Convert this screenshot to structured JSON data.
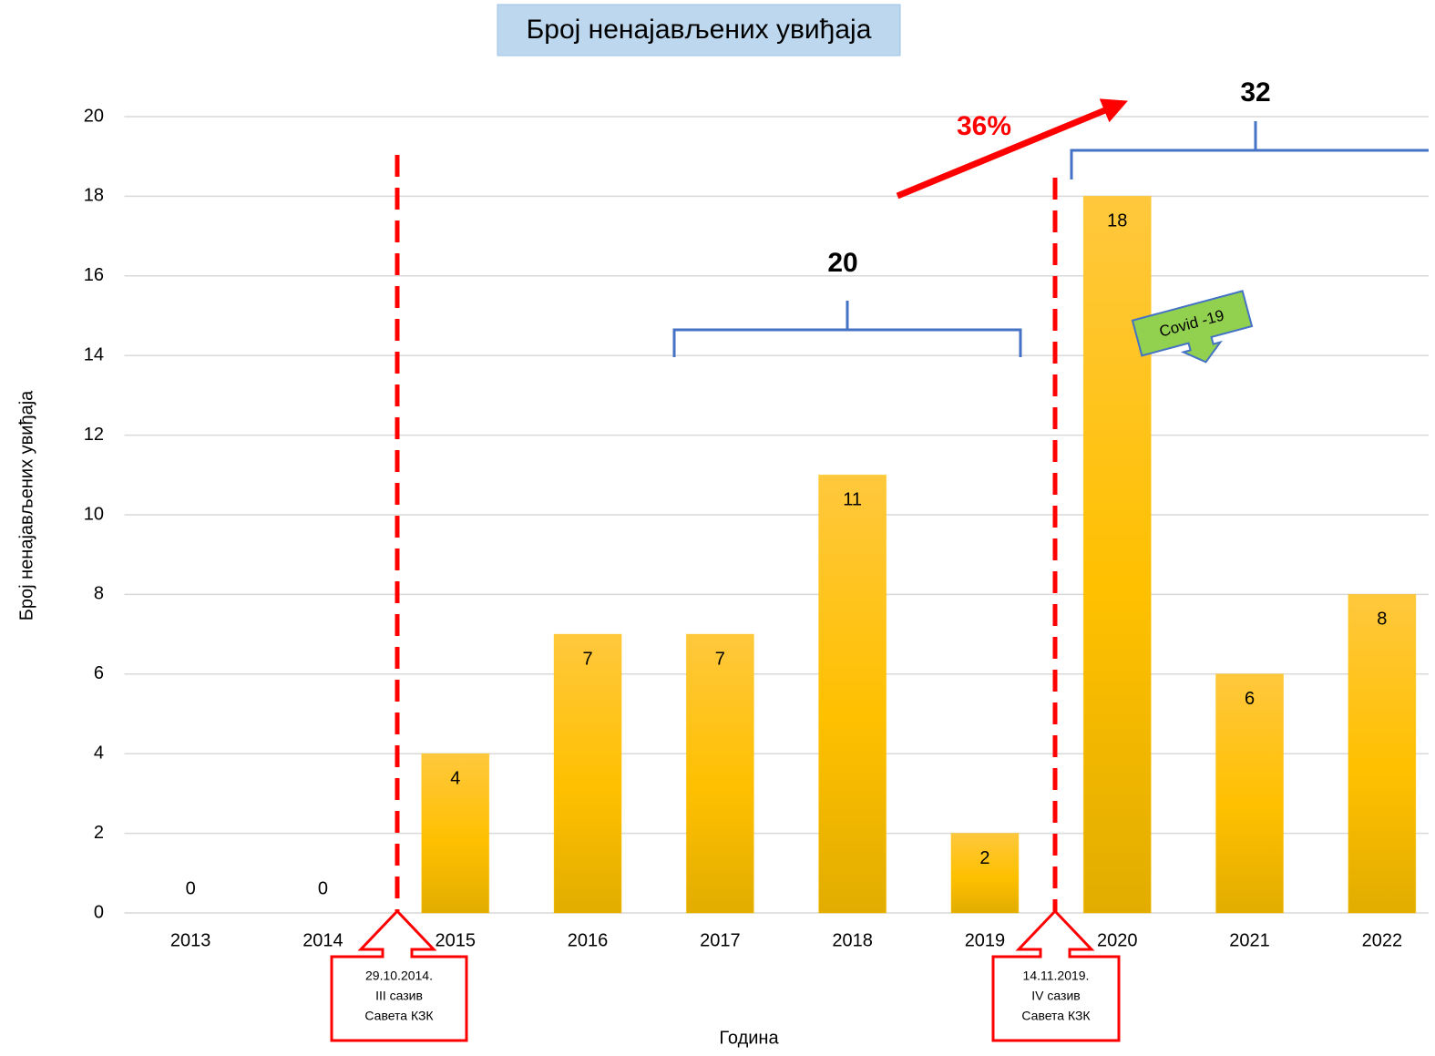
{
  "chart_data": {
    "type": "bar",
    "title": "Број ненајављених увиђаја",
    "x_label": "Година",
    "y_label": "Број ненајављених увиђаја",
    "categories": [
      "2013",
      "2014",
      "2015",
      "2016",
      "2017",
      "2018",
      "2019",
      "2020",
      "2021",
      "2022"
    ],
    "values": [
      0,
      0,
      4,
      7,
      7,
      11,
      2,
      18,
      6,
      8
    ],
    "color": "#ffc000",
    "ylim": [
      0,
      20
    ],
    "yticks": [
      0,
      2,
      4,
      6,
      8,
      10,
      12,
      14,
      16,
      18,
      20
    ],
    "grid": true,
    "annotations": [
      {
        "text": "36%"
      },
      {
        "text": "20"
      },
      {
        "text": "32"
      },
      {
        "text": "Covid -19"
      }
    ],
    "notes": [
      [
        "29.10.2014.",
        "III сазив",
        "Савета КЗК"
      ],
      [
        "14.11.2019.",
        "IV сазив",
        "Савета КЗК"
      ]
    ]
  }
}
